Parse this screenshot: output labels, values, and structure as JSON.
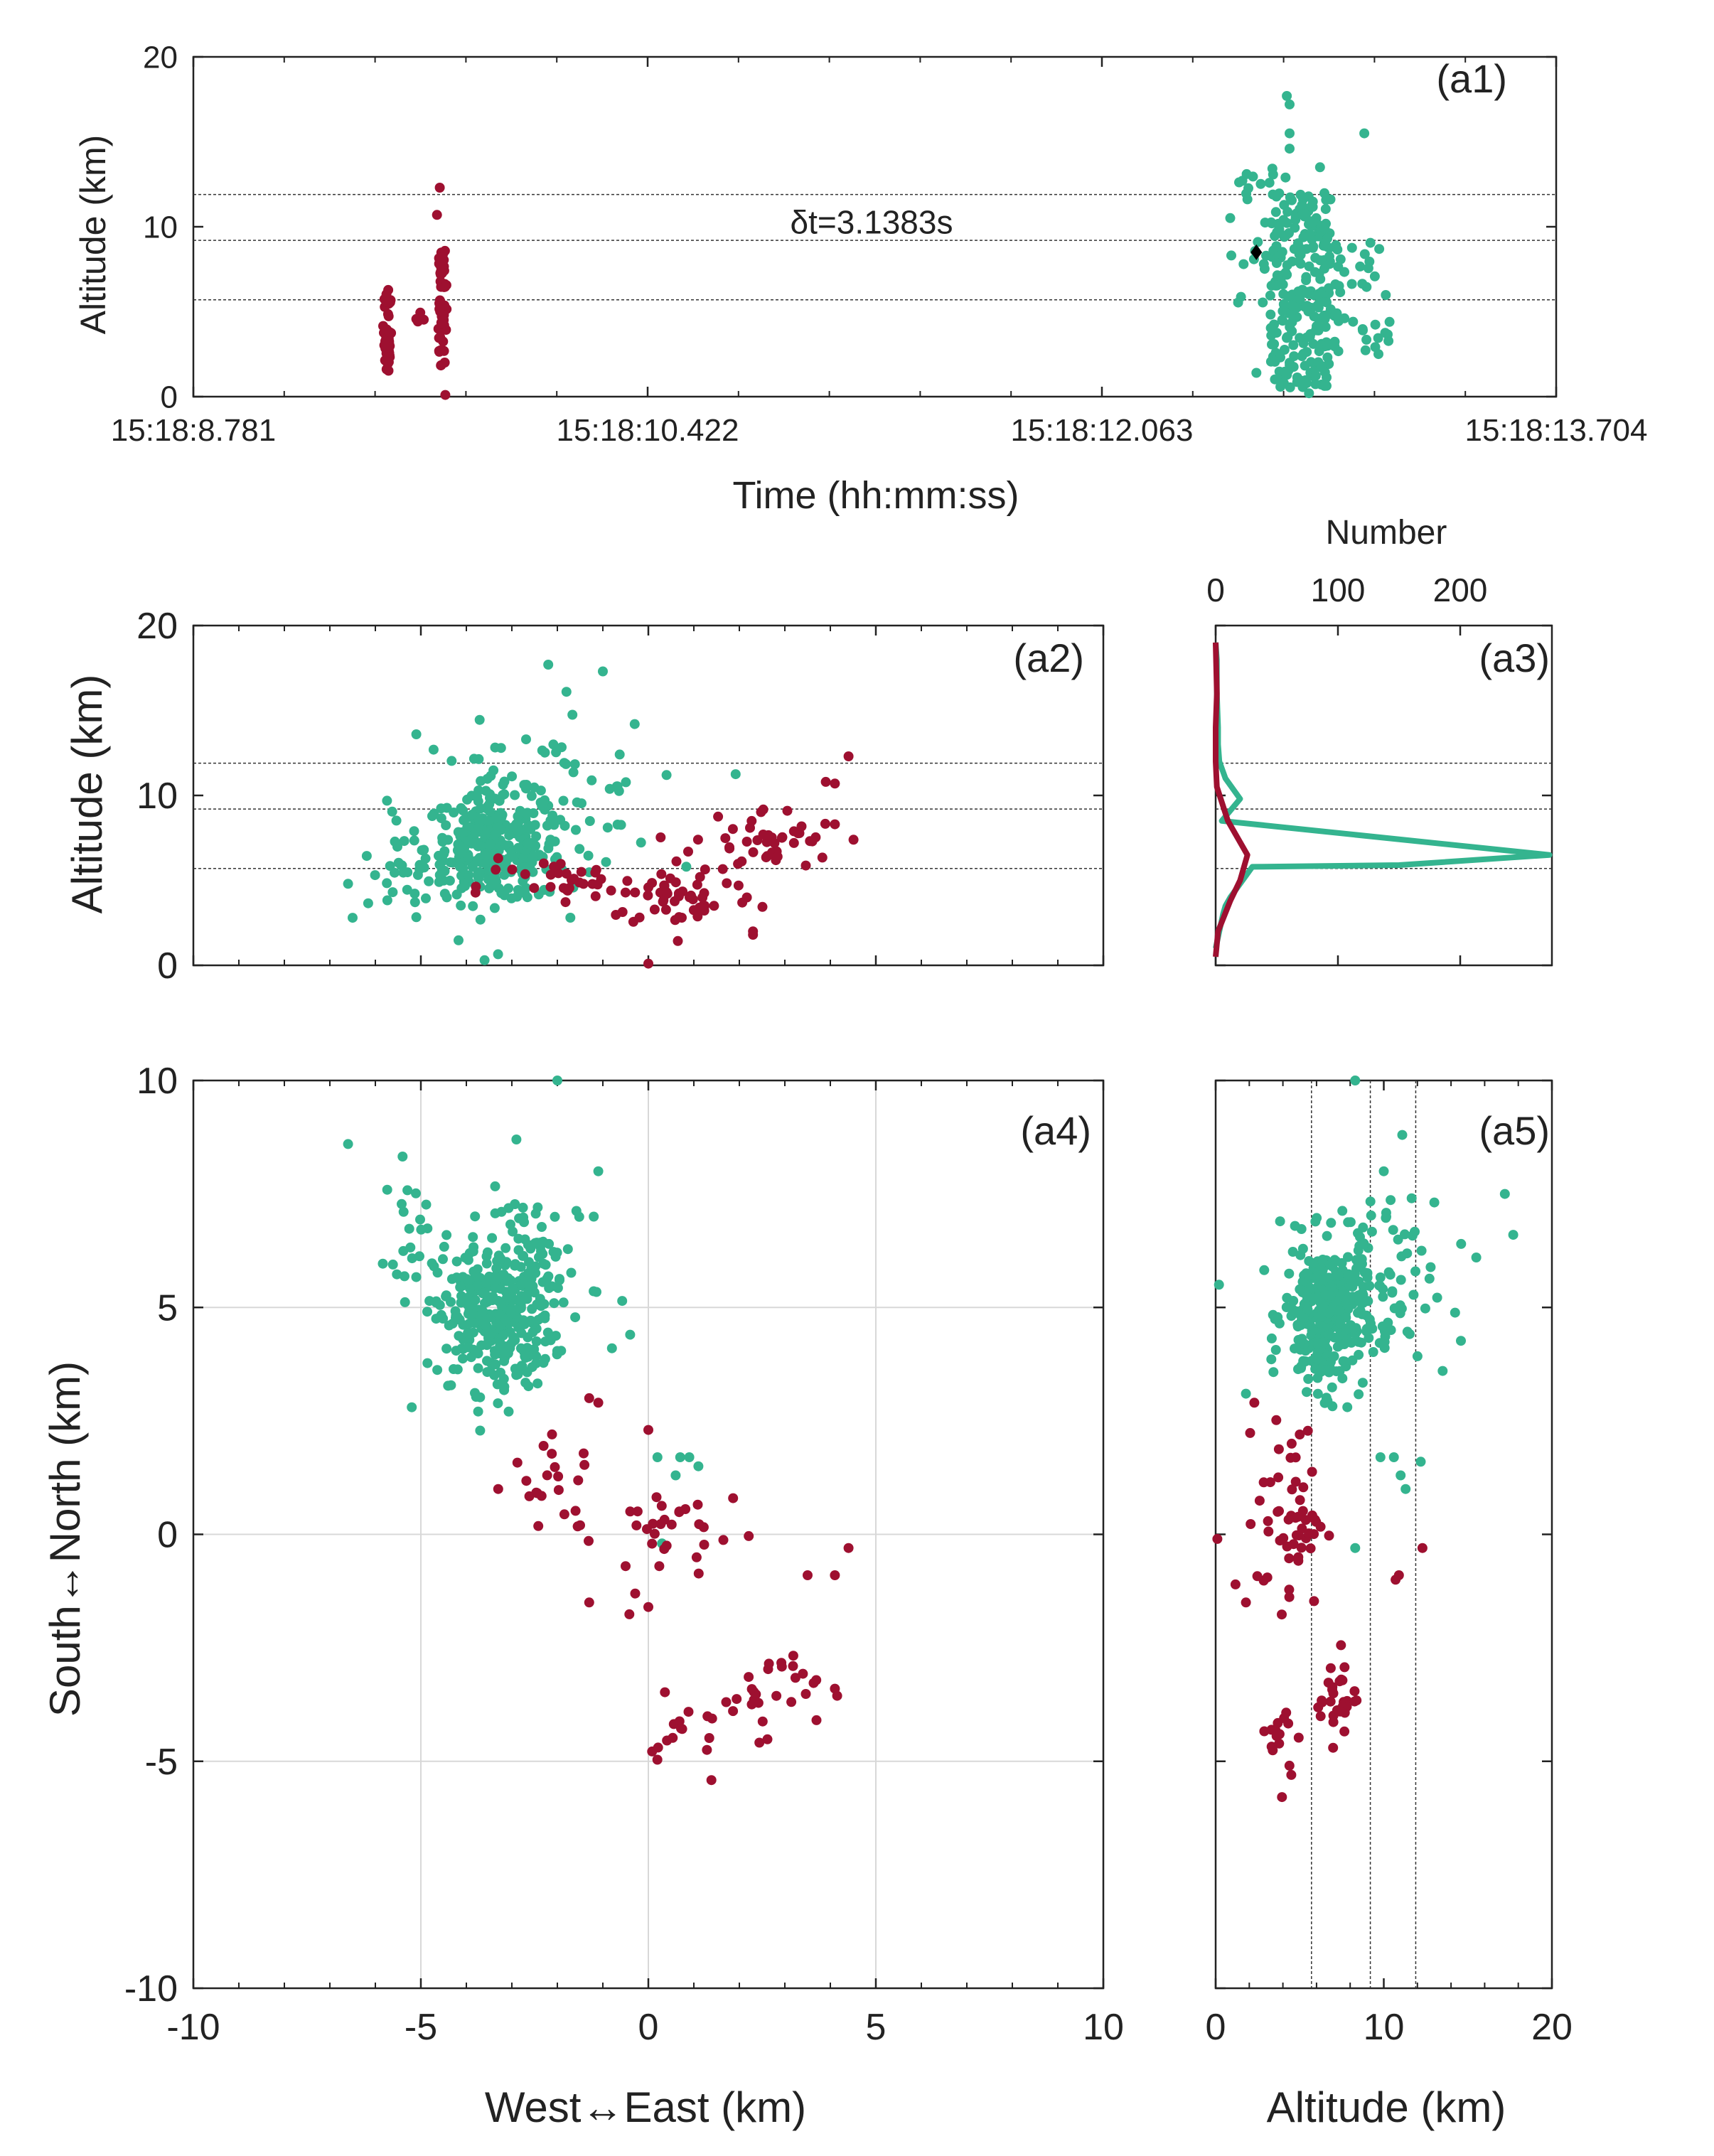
{
  "colors": {
    "red": "#9e1030",
    "green": "#34b48f",
    "diamond": "#000000"
  },
  "chart_data": {
    "type": "scatter",
    "panels": [
      {
        "id": "a1",
        "label": "(a1)",
        "type": "scatter",
        "xlabel": "Time (hh:mm:ss)",
        "ylabel": "Altitude (km)",
        "xlim": [
          0,
          4.923
        ],
        "ylim": [
          0,
          20
        ],
        "xticks": [
          {
            "value": 0,
            "label": "15:18:8.781"
          },
          {
            "value": 1.641,
            "label": "15:18:10.422"
          },
          {
            "value": 3.282,
            "label": "15:18:12.063"
          },
          {
            "value": 4.923,
            "label": "15:18:13.704"
          }
        ],
        "yticks": [
          0,
          10,
          20
        ],
        "hlines": [
          5.7,
          9.2,
          11.9
        ],
        "annotation": {
          "text": "δt=3.1383s",
          "x": 2.45,
          "y": 9.6
        },
        "series": [
          {
            "name": "red",
            "color": "red",
            "groups": [
              {
                "t": 0.7,
                "ymin": 1.5,
                "ymax": 6.3,
                "n": 40
              },
              {
                "t": 0.82,
                "ymin": 3.8,
                "ymax": 5.0,
                "n": 4
              },
              {
                "t": 0.9,
                "ymin": 1.8,
                "ymax": 8.6,
                "n": 55
              }
            ],
            "extra": [
              [
                0.89,
                12.3
              ],
              [
                0.88,
                10.7
              ],
              [
                0.91,
                0.1
              ],
              [
                0.9,
                8.2
              ]
            ]
          },
          {
            "name": "green",
            "color": "green",
            "groups": [
              {
                "t": 3.85,
                "ymin": 4.8,
                "ymax": 13.5,
                "n": 35
              },
              {
                "t": 4.0,
                "ymin": 0.5,
                "ymax": 12.0,
                "n": 230
              },
              {
                "t": 4.23,
                "ymin": 2.5,
                "ymax": 9.5,
                "n": 40
              }
            ],
            "extra": [
              [
                3.95,
                17.7
              ],
              [
                3.96,
                17.2
              ],
              [
                3.96,
                15.5
              ],
              [
                3.96,
                14.6
              ],
              [
                4.23,
                15.5
              ],
              [
                4.07,
                13.5
              ],
              [
                3.84,
                1.4
              ],
              [
                3.96,
                2.0
              ],
              [
                4.03,
                0.2
              ]
            ]
          },
          {
            "name": "marker",
            "color": "diamond",
            "points": [
              [
                3.84,
                8.5
              ]
            ]
          }
        ]
      },
      {
        "id": "a2",
        "label": "(a2)",
        "type": "scatter",
        "xlabel": "",
        "ylabel": "Altitude (km)",
        "xlim": [
          -10,
          10
        ],
        "ylim": [
          0,
          20
        ],
        "yticks": [
          0,
          10,
          20
        ],
        "hlines": [
          5.7,
          9.2,
          11.9
        ],
        "series": [
          {
            "name": "green",
            "color": "green",
            "clusters": [
              {
                "cx": -3.4,
                "cy": 6.9,
                "sx": 0.75,
                "sy": 1.6,
                "n": 280
              },
              {
                "cx": -2.5,
                "cy": 9.5,
                "sx": 1.4,
                "sy": 2.2,
                "n": 80
              },
              {
                "cx": -5.5,
                "cy": 5.2,
                "sx": 0.7,
                "sy": 1.3,
                "n": 25
              }
            ],
            "extra": [
              [
                -2.2,
                17.7
              ],
              [
                -1.0,
                17.3
              ],
              [
                -6.6,
                4.8
              ],
              [
                -6.5,
                2.8
              ],
              [
                -3.6,
                0.3
              ],
              [
                -1.8,
                16.1
              ],
              [
                -5.1,
                13.6
              ],
              [
                -0.3,
                14.2
              ],
              [
                0.4,
                11.2
              ]
            ]
          },
          {
            "name": "red",
            "color": "red",
            "clusters": [
              {
                "cx": -1.5,
                "cy": 4.6,
                "sx": 1.1,
                "sy": 0.9,
                "n": 35
              },
              {
                "cx": 0.8,
                "cy": 4.0,
                "sx": 0.8,
                "sy": 0.9,
                "n": 45
              },
              {
                "cx": 2.6,
                "cy": 7.3,
                "sx": 0.8,
                "sy": 1.0,
                "n": 45
              }
            ],
            "extra": [
              [
                4.4,
                12.3
              ],
              [
                4.1,
                10.7
              ],
              [
                3.9,
                10.8
              ],
              [
                0.0,
                0.1
              ],
              [
                2.3,
                2.0
              ],
              [
                2.3,
                1.8
              ],
              [
                -3.3,
                6.3
              ],
              [
                -2.3,
                6.0
              ],
              [
                4.1,
                8.3
              ],
              [
                3.2,
                7.2
              ]
            ]
          }
        ]
      },
      {
        "id": "a3",
        "label": "(a3)",
        "type": "line",
        "xlabel_top": "Number",
        "ylabel": "",
        "xlim": [
          0,
          275
        ],
        "ylim": [
          0,
          20
        ],
        "xticks": [
          0,
          100,
          200
        ],
        "hlines": [
          5.7,
          9.2,
          11.9
        ],
        "series": [
          {
            "name": "green",
            "color": "green",
            "x": [
              0,
              6,
              8,
              12,
              30,
              150,
              273,
              5,
              20,
              8,
              3,
              2,
              2,
              1,
              1,
              0
            ],
            "y": [
              1.0,
              3.0,
              3.5,
              4.0,
              5.8,
              5.9,
              6.5,
              8.5,
              9.8,
              11.0,
              12.0,
              13.0,
              14.0,
              16.0,
              18.0,
              19.0
            ]
          },
          {
            "name": "red",
            "color": "red",
            "x": [
              0,
              2,
              12,
              20,
              26,
              10,
              1,
              0,
              0,
              1,
              0
            ],
            "y": [
              0.5,
              2.0,
              3.8,
              5.0,
              6.5,
              8.5,
              10.5,
              12.0,
              14.0,
              16.0,
              19.0
            ]
          }
        ]
      },
      {
        "id": "a4",
        "label": "(a4)",
        "type": "scatter",
        "xlabel": "West↔East (km)",
        "ylabel": "South↔North (km)",
        "xlim": [
          -10,
          10
        ],
        "ylim": [
          -10,
          10
        ],
        "xticks": [
          -10,
          -5,
          0,
          5,
          10
        ],
        "yticks": [
          -10,
          -5,
          0,
          5,
          10
        ],
        "grid": true,
        "series": [
          {
            "name": "green",
            "color": "green",
            "clusters": [
              {
                "cx": -3.4,
                "cy": 4.8,
                "sx": 0.65,
                "sy": 0.8,
                "n": 320
              },
              {
                "cx": -2.4,
                "cy": 6.0,
                "sx": 0.7,
                "sy": 0.8,
                "n": 60
              },
              {
                "cx": -5.3,
                "cy": 7.0,
                "sx": 0.25,
                "sy": 0.6,
                "n": 18
              }
            ],
            "extra": [
              [
                -6.6,
                8.6
              ],
              [
                -2.0,
                10.0
              ],
              [
                -2.9,
                8.7
              ],
              [
                -5.2,
                2.8
              ],
              [
                0.9,
                1.7
              ],
              [
                0.2,
                1.7
              ],
              [
                1.1,
                1.5
              ],
              [
                0.6,
                1.3
              ],
              [
                0.7,
                1.7
              ],
              [
                0.3,
                -0.2
              ],
              [
                -0.8,
                4.1
              ],
              [
                -0.4,
                4.4
              ],
              [
                -1.1,
                8.0
              ],
              [
                -1.2,
                7.0
              ]
            ]
          },
          {
            "name": "red",
            "color": "red",
            "clusters": [
              {
                "cx": -2.0,
                "cy": 1.0,
                "sx": 0.5,
                "sy": 0.5,
                "n": 20
              },
              {
                "cx": 0.6,
                "cy": 0.0,
                "sx": 0.8,
                "sy": 0.6,
                "n": 30
              },
              {
                "cx": 2.5,
                "cy": -3.4,
                "sx": 0.6,
                "sy": 0.5,
                "n": 30
              },
              {
                "cx": 0.8,
                "cy": -4.6,
                "sx": 0.4,
                "sy": 0.5,
                "n": 15
              }
            ],
            "extra": [
              [
                4.4,
                -0.3
              ],
              [
                4.1,
                -0.9
              ],
              [
                3.5,
                -0.9
              ],
              [
                -1.3,
                3.0
              ],
              [
                -1.1,
                2.9
              ],
              [
                0.0,
                2.3
              ],
              [
                -3.3,
                1.0
              ],
              [
                -1.3,
                -1.5
              ],
              [
                0.0,
                -1.6
              ],
              [
                4.1,
                -3.4
              ],
              [
                -1.5,
                0.2
              ],
              [
                -0.5,
                -0.7
              ]
            ]
          }
        ]
      },
      {
        "id": "a5",
        "label": "(a5)",
        "type": "scatter",
        "xlabel": "Altitude (km)",
        "ylabel": "",
        "xlim": [
          0,
          20
        ],
        "ylim": [
          -10,
          10
        ],
        "xticks": [
          0,
          10,
          20
        ],
        "vlines": [
          5.7,
          9.2,
          11.9
        ],
        "series": [
          {
            "name": "green",
            "color": "green",
            "clusters": [
              {
                "cx": 6.5,
                "cy": 4.8,
                "sx": 1.2,
                "sy": 0.8,
                "n": 300
              },
              {
                "cx": 9.0,
                "cy": 5.3,
                "sx": 2.0,
                "sy": 1.0,
                "n": 90
              }
            ],
            "extra": [
              [
                17.7,
                6.6
              ],
              [
                17.2,
                7.5
              ],
              [
                15.5,
                6.1
              ],
              [
                14.6,
                6.4
              ],
              [
                0.2,
                5.5
              ],
              [
                1.8,
                3.1
              ],
              [
                13.5,
                3.6
              ],
              [
                9.8,
                1.7
              ],
              [
                10.6,
                1.7
              ],
              [
                11.0,
                1.3
              ],
              [
                12.2,
                1.6
              ],
              [
                11.3,
                1.0
              ],
              [
                8.3,
                -0.3
              ],
              [
                8.3,
                10.0
              ],
              [
                11.1,
                8.8
              ],
              [
                10.0,
                8.0
              ]
            ]
          },
          {
            "name": "red",
            "color": "red",
            "clusters": [
              {
                "cx": 4.5,
                "cy": 0.4,
                "sx": 1.0,
                "sy": 1.0,
                "n": 55
              },
              {
                "cx": 7.2,
                "cy": -3.5,
                "sx": 0.6,
                "sy": 0.5,
                "n": 30
              },
              {
                "cx": 4.2,
                "cy": -4.6,
                "sx": 0.5,
                "sy": 0.5,
                "n": 15
              }
            ],
            "extra": [
              [
                0.1,
                -0.1
              ],
              [
                1.8,
                -1.5
              ],
              [
                2.3,
                2.9
              ],
              [
                12.3,
                -0.3
              ],
              [
                10.7,
                -1.0
              ],
              [
                10.9,
                -0.9
              ],
              [
                5.0,
                2.2
              ],
              [
                4.5,
                -5.3
              ]
            ]
          }
        ]
      }
    ]
  }
}
